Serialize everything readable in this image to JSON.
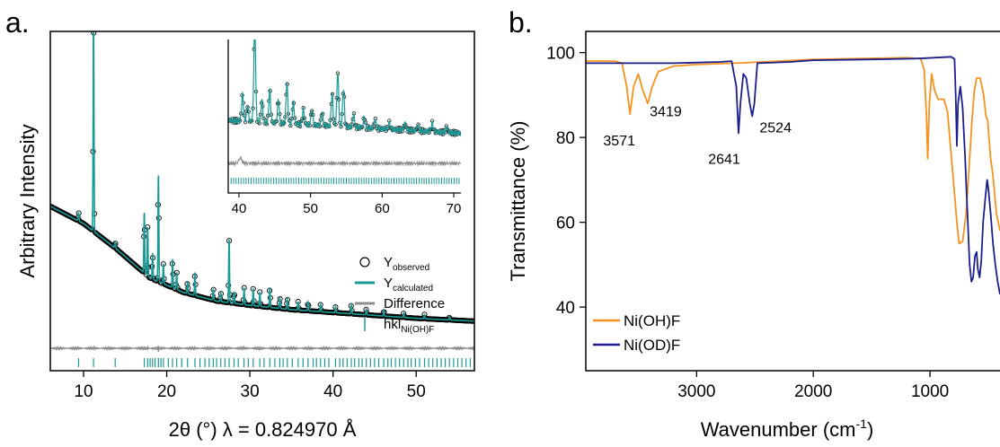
{
  "panels": {
    "a": {
      "panel_label": "a.",
      "xlabel": "2θ (°) λ = 0.824970 Å",
      "ylabel": "Arbitrary Intensity",
      "legend": [
        {
          "text": "Y",
          "sub": "observed"
        },
        {
          "text": "Y",
          "sub": "calculated"
        },
        {
          "text": "Difference",
          "sub": ""
        },
        {
          "text": "hkl",
          "sub": "Ni(OH)F"
        }
      ]
    },
    "b": {
      "panel_label": "b.",
      "xlabel_main": "Wavenumber (cm",
      "xlabel_sup": "-1",
      "xlabel_end": ")",
      "ylabel": "Transmittance (%)",
      "legend": [
        "Ni(OH)F",
        "Ni(OD)F"
      ]
    }
  },
  "colors": {
    "observed": "#000000",
    "calculated": "#1a9a96",
    "difference": "#8c8c8c",
    "hkl": "#1a9a96",
    "NiOHF": "#f6921e",
    "NiODF": "#1b1e8f"
  },
  "chart_data": [
    {
      "type": "line",
      "panel": "a",
      "xlabel": "2θ (°) λ = 0.824970 Å",
      "ylabel": "Arbitrary Intensity",
      "xlim": [
        6,
        57
      ],
      "xticks": [
        10,
        20,
        30,
        40,
        50
      ],
      "yticks_shown": false,
      "series": [
        {
          "name": "Yobserved",
          "style": "open-circles",
          "baseline": [
            [
              6,
              0.46
            ],
            [
              10,
              0.4
            ],
            [
              14,
              0.31
            ],
            [
              18,
              0.21
            ],
            [
              22,
              0.16
            ],
            [
              26,
              0.13
            ],
            [
              30,
              0.115
            ],
            [
              35,
              0.1
            ],
            [
              40,
              0.09
            ],
            [
              45,
              0.08
            ],
            [
              50,
              0.07
            ],
            [
              57,
              0.06
            ]
          ]
        },
        {
          "name": "Ycalculated",
          "style": "line"
        },
        {
          "name": "Difference",
          "style": "line",
          "offset": -0.04
        },
        {
          "name": "hklNi(OH)F",
          "style": "ticks"
        }
      ],
      "peaks": [
        {
          "x": 9.4,
          "h": 0.03
        },
        {
          "x": 11.2,
          "h": 0.75
        },
        {
          "x": 13.8,
          "h": 0.02
        },
        {
          "x": 17.3,
          "h": 0.21
        },
        {
          "x": 17.7,
          "h": 0.17
        },
        {
          "x": 18.3,
          "h": 0.09
        },
        {
          "x": 19.0,
          "h": 0.37
        },
        {
          "x": 19.6,
          "h": 0.07
        },
        {
          "x": 20.7,
          "h": 0.1
        },
        {
          "x": 21.2,
          "h": 0.06
        },
        {
          "x": 22.5,
          "h": 0.04
        },
        {
          "x": 23.4,
          "h": 0.08
        },
        {
          "x": 25.6,
          "h": 0.04
        },
        {
          "x": 26.5,
          "h": 0.03
        },
        {
          "x": 27.5,
          "h": 0.22
        },
        {
          "x": 28.1,
          "h": 0.04
        },
        {
          "x": 29.3,
          "h": 0.06
        },
        {
          "x": 30.4,
          "h": 0.06
        },
        {
          "x": 31.2,
          "h": 0.05
        },
        {
          "x": 32.4,
          "h": 0.07
        },
        {
          "x": 33.6,
          "h": 0.04
        },
        {
          "x": 34.5,
          "h": 0.04
        },
        {
          "x": 35.8,
          "h": 0.03
        },
        {
          "x": 37.0,
          "h": 0.03
        },
        {
          "x": 38.5,
          "h": 0.025
        },
        {
          "x": 40.3,
          "h": 0.02
        },
        {
          "x": 42.2,
          "h": 0.03
        },
        {
          "x": 44.0,
          "h": 0.02
        },
        {
          "x": 46.1,
          "h": 0.02
        },
        {
          "x": 48.5,
          "h": 0.015
        },
        {
          "x": 51.0,
          "h": 0.015
        },
        {
          "x": 54.0,
          "h": 0.01
        }
      ],
      "hkl_positions": [
        9.4,
        11.2,
        13.8,
        17.3,
        17.7,
        18.0,
        18.3,
        18.6,
        19.0,
        19.3,
        19.6,
        20.2,
        20.7,
        21.2,
        21.8,
        22.5,
        23.4,
        24.0,
        24.6,
        25.1,
        25.6,
        26.0,
        26.5,
        27.0,
        27.5,
        28.1,
        28.6,
        29.3,
        29.8,
        30.4,
        31.2,
        31.7,
        32.4,
        33.0,
        33.6,
        34.0,
        34.5,
        35.1,
        35.8,
        36.4,
        37.0,
        37.6,
        38.0,
        38.5,
        39.0,
        39.5,
        40.3,
        40.8,
        41.2,
        41.7,
        42.2,
        42.6,
        43.1,
        43.5,
        44.0,
        44.5,
        45.0,
        45.5,
        46.1,
        46.6,
        47.0,
        47.5,
        48.0,
        48.5,
        49.0,
        49.4,
        49.9,
        50.4,
        51.0,
        51.5,
        52.0,
        52.5,
        53.0,
        53.5,
        54.0,
        54.5,
        55.0,
        55.5,
        56.0,
        56.5
      ],
      "inset": {
        "xlim": [
          38.5,
          71
        ],
        "xticks": [
          40,
          50,
          60,
          70
        ],
        "peaks": [
          {
            "x": 40.5,
            "h": 0.25
          },
          {
            "x": 41.2,
            "h": 0.15
          },
          {
            "x": 42.2,
            "h": 0.9
          },
          {
            "x": 43.2,
            "h": 0.2
          },
          {
            "x": 44.3,
            "h": 0.3
          },
          {
            "x": 45.5,
            "h": 0.22
          },
          {
            "x": 46.7,
            "h": 0.38
          },
          {
            "x": 47.6,
            "h": 0.2
          },
          {
            "x": 49.0,
            "h": 0.14
          },
          {
            "x": 50.2,
            "h": 0.15
          },
          {
            "x": 51.6,
            "h": 0.12
          },
          {
            "x": 53.0,
            "h": 0.3
          },
          {
            "x": 53.8,
            "h": 0.5
          },
          {
            "x": 54.6,
            "h": 0.35
          },
          {
            "x": 56.0,
            "h": 0.12
          },
          {
            "x": 57.5,
            "h": 0.1
          },
          {
            "x": 59.0,
            "h": 0.08
          },
          {
            "x": 61.0,
            "h": 0.06
          },
          {
            "x": 63.2,
            "h": 0.06
          },
          {
            "x": 65.0,
            "h": 0.05
          },
          {
            "x": 67.0,
            "h": 0.08
          },
          {
            "x": 69.0,
            "h": 0.05
          }
        ]
      }
    },
    {
      "type": "line",
      "panel": "b",
      "xlabel": "Wavenumber (cm-1)",
      "ylabel": "Transmittance (%)",
      "xlim": [
        3950,
        400
      ],
      "ylim": [
        25,
        105
      ],
      "xticks": [
        3000,
        2000,
        1000
      ],
      "yticks": [
        40,
        60,
        80,
        100
      ],
      "series": [
        {
          "name": "Ni(OH)F",
          "points": [
            [
              3950,
              98.0
            ],
            [
              3700,
              98.0
            ],
            [
              3640,
              97.5
            ],
            [
              3600,
              92
            ],
            [
              3571,
              85.5
            ],
            [
              3540,
              92
            ],
            [
              3500,
              95
            ],
            [
              3460,
              91
            ],
            [
              3419,
              88
            ],
            [
              3380,
              92
            ],
            [
              3330,
              95.5
            ],
            [
              3200,
              96.8
            ],
            [
              3000,
              97.2
            ],
            [
              2600,
              97.6
            ],
            [
              2000,
              98.4
            ],
            [
              1200,
              98.8
            ],
            [
              1080,
              98.6
            ],
            [
              1050,
              96
            ],
            [
              1030,
              85
            ],
            [
              1020,
              75
            ],
            [
              1005,
              88
            ],
            [
              985,
              95
            ],
            [
              960,
              91
            ],
            [
              930,
              89
            ],
            [
              880,
              89
            ],
            [
              850,
              86
            ],
            [
              800,
              70
            ],
            [
              770,
              60
            ],
            [
              750,
              55
            ],
            [
              720,
              55.5
            ],
            [
              690,
              62
            ],
            [
              660,
              75
            ],
            [
              640,
              84
            ],
            [
              620,
              91
            ],
            [
              600,
              94
            ],
            [
              570,
              94
            ],
            [
              540,
              90
            ],
            [
              520,
              85
            ],
            [
              505,
              84
            ],
            [
              495,
              80
            ],
            [
              480,
              75
            ],
            [
              465,
              72
            ],
            [
              450,
              68
            ],
            [
              430,
              62
            ],
            [
              400,
              58
            ]
          ]
        },
        {
          "name": "Ni(OD)F",
          "points": [
            [
              3950,
              97.5
            ],
            [
              3200,
              97.5
            ],
            [
              2800,
              97.8
            ],
            [
              2700,
              98
            ],
            [
              2660,
              92
            ],
            [
              2641,
              81
            ],
            [
              2625,
              88
            ],
            [
              2600,
              95
            ],
            [
              2575,
              94
            ],
            [
              2545,
              88
            ],
            [
              2524,
              85
            ],
            [
              2505,
              88
            ],
            [
              2480,
              97.5
            ],
            [
              2200,
              97.8
            ],
            [
              2000,
              98.2
            ],
            [
              1500,
              98.4
            ],
            [
              1100,
              98.6
            ],
            [
              820,
              99
            ],
            [
              790,
              98.5
            ],
            [
              780,
              90
            ],
            [
              770,
              78
            ],
            [
              760,
              88
            ],
            [
              740,
              92
            ],
            [
              720,
              87
            ],
            [
              700,
              76
            ],
            [
              680,
              63
            ],
            [
              660,
              50
            ],
            [
              645,
              46
            ],
            [
              630,
              47
            ],
            [
              615,
              52
            ],
            [
              600,
              53
            ],
            [
              590,
              49
            ],
            [
              575,
              47
            ],
            [
              560,
              51
            ],
            [
              545,
              60
            ],
            [
              525,
              66
            ],
            [
              510,
              70
            ],
            [
              500,
              68
            ],
            [
              480,
              62
            ],
            [
              460,
              55
            ],
            [
              440,
              50
            ],
            [
              420,
              46
            ],
            [
              400,
              43
            ]
          ]
        }
      ],
      "annotations": [
        {
          "text": "3571",
          "x": 3571,
          "y": 85.5
        },
        {
          "text": "3419",
          "x": 3419,
          "y": 88
        },
        {
          "text": "2641",
          "x": 2641,
          "y": 81
        },
        {
          "text": "2524",
          "x": 2524,
          "y": 85
        }
      ]
    }
  ]
}
